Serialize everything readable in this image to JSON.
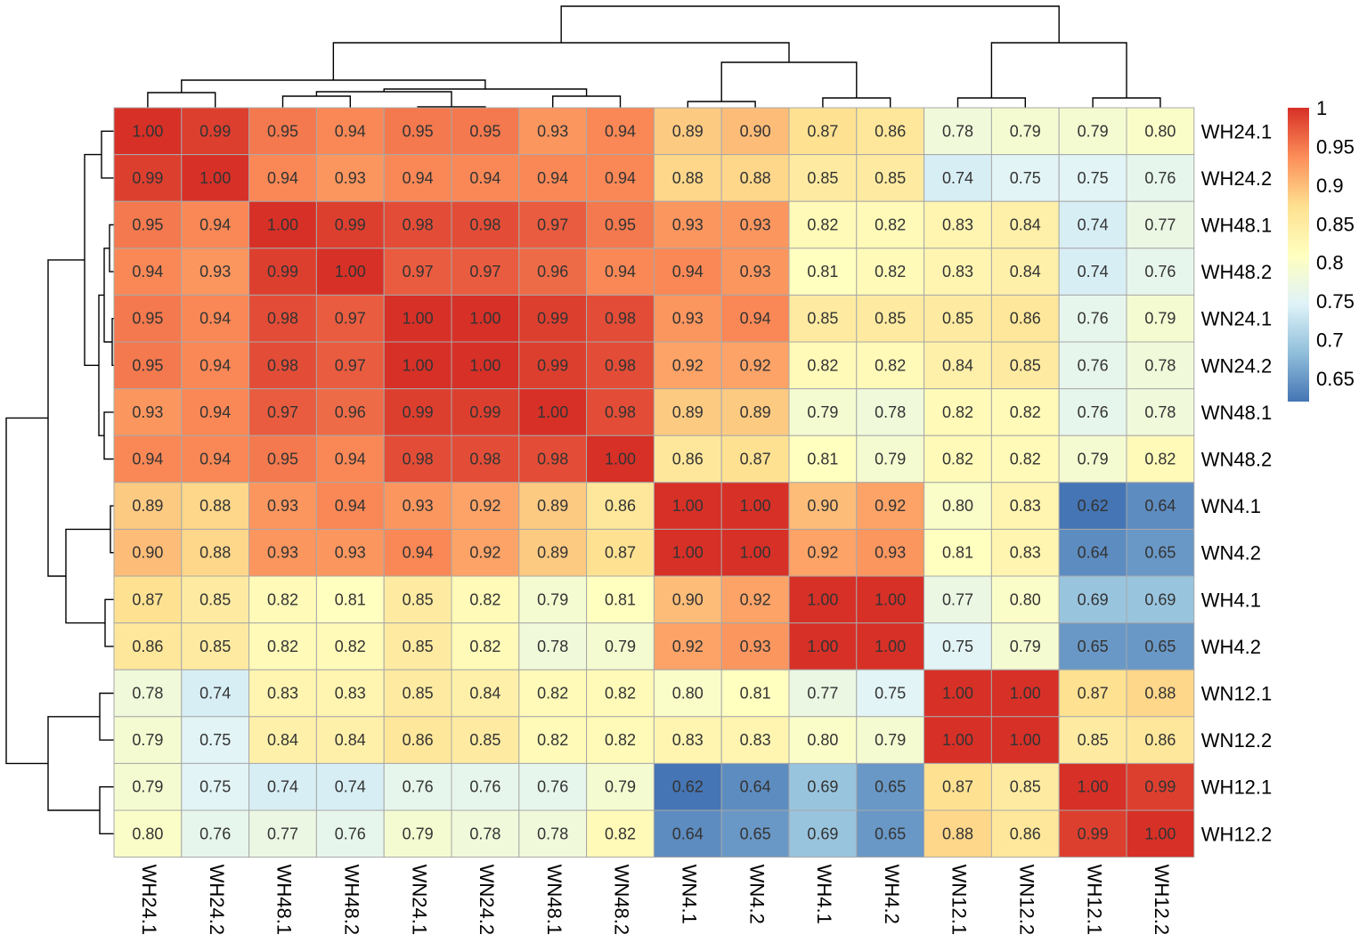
{
  "chart_data": {
    "type": "heatmap",
    "title": "",
    "xlabel": "",
    "ylabel": "",
    "rows": [
      "WH24.1",
      "WH24.2",
      "WH48.1",
      "WH48.2",
      "WN24.1",
      "WN24.2",
      "WN48.1",
      "WN48.2",
      "WN4.1",
      "WN4.2",
      "WH4.1",
      "WH4.2",
      "WN12.1",
      "WN12.2",
      "WH12.1",
      "WH12.2"
    ],
    "columns": [
      "WH24.1",
      "WH24.2",
      "WH48.1",
      "WH48.2",
      "WN24.1",
      "WN24.2",
      "WN48.1",
      "WN48.2",
      "WN4.1",
      "WN4.2",
      "WH4.1",
      "WH4.2",
      "WN12.1",
      "WN12.2",
      "WH12.1",
      "WH12.2"
    ],
    "values": [
      [
        1.0,
        0.99,
        0.95,
        0.94,
        0.95,
        0.95,
        0.93,
        0.94,
        0.89,
        0.9,
        0.87,
        0.86,
        0.78,
        0.79,
        0.79,
        0.8
      ],
      [
        0.99,
        1.0,
        0.94,
        0.93,
        0.94,
        0.94,
        0.94,
        0.94,
        0.88,
        0.88,
        0.85,
        0.85,
        0.74,
        0.75,
        0.75,
        0.76
      ],
      [
        0.95,
        0.94,
        1.0,
        0.99,
        0.98,
        0.98,
        0.97,
        0.95,
        0.93,
        0.93,
        0.82,
        0.82,
        0.83,
        0.84,
        0.74,
        0.77
      ],
      [
        0.94,
        0.93,
        0.99,
        1.0,
        0.97,
        0.97,
        0.96,
        0.94,
        0.94,
        0.93,
        0.81,
        0.82,
        0.83,
        0.84,
        0.74,
        0.76
      ],
      [
        0.95,
        0.94,
        0.98,
        0.97,
        1.0,
        1.0,
        0.99,
        0.98,
        0.93,
        0.94,
        0.85,
        0.85,
        0.85,
        0.86,
        0.76,
        0.79
      ],
      [
        0.95,
        0.94,
        0.98,
        0.97,
        1.0,
        1.0,
        0.99,
        0.98,
        0.92,
        0.92,
        0.82,
        0.82,
        0.84,
        0.85,
        0.76,
        0.78
      ],
      [
        0.93,
        0.94,
        0.97,
        0.96,
        0.99,
        0.99,
        1.0,
        0.98,
        0.89,
        0.89,
        0.79,
        0.78,
        0.82,
        0.82,
        0.76,
        0.78
      ],
      [
        0.94,
        0.94,
        0.95,
        0.94,
        0.98,
        0.98,
        0.98,
        1.0,
        0.86,
        0.87,
        0.81,
        0.79,
        0.82,
        0.82,
        0.79,
        0.82
      ],
      [
        0.89,
        0.88,
        0.93,
        0.94,
        0.93,
        0.92,
        0.89,
        0.86,
        1.0,
        1.0,
        0.9,
        0.92,
        0.8,
        0.83,
        0.62,
        0.64
      ],
      [
        0.9,
        0.88,
        0.93,
        0.93,
        0.94,
        0.92,
        0.89,
        0.87,
        1.0,
        1.0,
        0.92,
        0.93,
        0.81,
        0.83,
        0.64,
        0.65
      ],
      [
        0.87,
        0.85,
        0.82,
        0.81,
        0.85,
        0.82,
        0.79,
        0.81,
        0.9,
        0.92,
        1.0,
        1.0,
        0.77,
        0.8,
        0.69,
        0.69
      ],
      [
        0.86,
        0.85,
        0.82,
        0.82,
        0.85,
        0.82,
        0.78,
        0.79,
        0.92,
        0.93,
        1.0,
        1.0,
        0.75,
        0.79,
        0.65,
        0.65
      ],
      [
        0.78,
        0.74,
        0.83,
        0.83,
        0.85,
        0.84,
        0.82,
        0.82,
        0.8,
        0.81,
        0.77,
        0.75,
        1.0,
        1.0,
        0.87,
        0.88
      ],
      [
        0.79,
        0.75,
        0.84,
        0.84,
        0.86,
        0.85,
        0.82,
        0.82,
        0.83,
        0.83,
        0.8,
        0.79,
        1.0,
        1.0,
        0.85,
        0.86
      ],
      [
        0.79,
        0.75,
        0.74,
        0.74,
        0.76,
        0.76,
        0.76,
        0.79,
        0.62,
        0.64,
        0.69,
        0.65,
        0.87,
        0.85,
        1.0,
        0.99
      ],
      [
        0.8,
        0.76,
        0.77,
        0.76,
        0.79,
        0.78,
        0.78,
        0.82,
        0.64,
        0.65,
        0.69,
        0.65,
        0.88,
        0.86,
        0.99,
        1.0
      ]
    ],
    "value_range": [
      0.62,
      1.0
    ],
    "legend": {
      "position": "right",
      "ticks": [
        "1",
        "0.95",
        "0.9",
        "0.85",
        "0.8",
        "0.75",
        "0.7",
        "0.65"
      ],
      "tick_values": [
        1.0,
        0.95,
        0.9,
        0.85,
        0.8,
        0.75,
        0.7,
        0.65
      ]
    },
    "colorscale": [
      "#4575b4",
      "#91bfdb",
      "#e0f3f8",
      "#ffffbf",
      "#fee090",
      "#fc8d59",
      "#d73027"
    ],
    "row_dendrogram": true,
    "column_dendrogram": true,
    "grid": true
  }
}
